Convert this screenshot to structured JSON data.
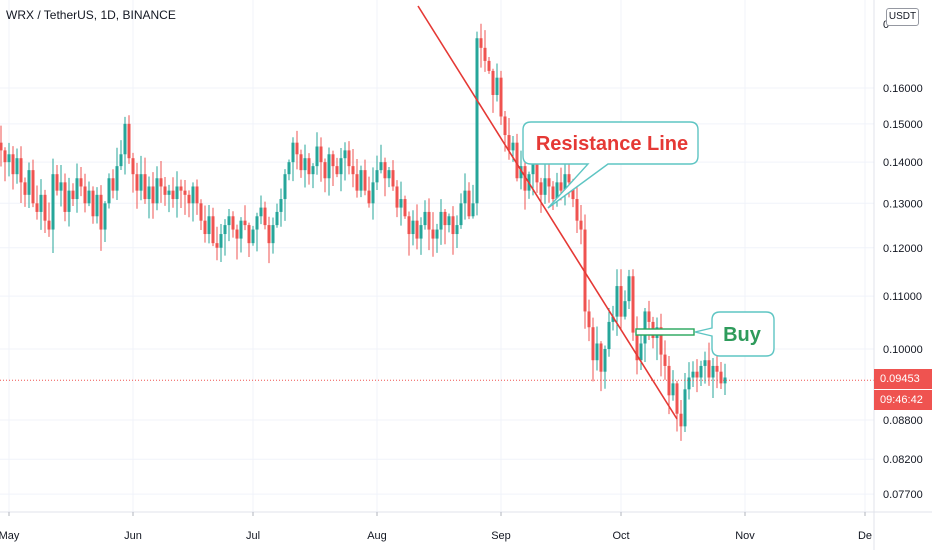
{
  "header": {
    "title": "WRX / TetherUS, 1D, BINANCE",
    "unit_badge": "USDT"
  },
  "price_tag": {
    "price": "0.09453",
    "countdown": "09:46:42"
  },
  "colors": {
    "up": "#26a69a",
    "down": "#ef5350",
    "annotation": "#e53935",
    "callout_border": "#5ec5c3"
  },
  "chart_data": {
    "type": "candlestick",
    "title": "WRX / TetherUS, 1D, BINANCE",
    "y_axis": {
      "scale": "log",
      "ticks": [
        "0.16000",
        "0.15000",
        "0.14000",
        "0.13000",
        "0.12000",
        "0.11000",
        "0.10000",
        "0.08800",
        "0.08200",
        "0.07700"
      ],
      "tick_values": [
        0.16,
        0.15,
        0.14,
        0.13,
        0.12,
        0.11,
        0.1,
        0.088,
        0.082,
        0.077
      ],
      "ylim": [
        0.073,
        0.185
      ]
    },
    "x_axis": {
      "ticks": [
        "May",
        "Jun",
        "Jul",
        "Aug",
        "Sep",
        "Oct",
        "Nov",
        "De"
      ],
      "tick_dates": [
        "2020-05-01",
        "2020-06-01",
        "2020-07-01",
        "2020-08-01",
        "2020-09-01",
        "2020-10-01",
        "2020-11-01",
        "2020-12-01"
      ],
      "range": [
        "2020-05-01",
        "2020-12-01"
      ]
    },
    "last_price": 0.09453,
    "candle_closes": {
      "start_date": "2020-04-28",
      "values": [
        0.145,
        0.143,
        0.14,
        0.142,
        0.137,
        0.141,
        0.135,
        0.132,
        0.138,
        0.13,
        0.128,
        0.132,
        0.126,
        0.124,
        0.137,
        0.133,
        0.135,
        0.128,
        0.133,
        0.131,
        0.136,
        0.134,
        0.13,
        0.133,
        0.127,
        0.132,
        0.124,
        0.13,
        0.136,
        0.133,
        0.139,
        0.142,
        0.15,
        0.141,
        0.137,
        0.133,
        0.137,
        0.131,
        0.134,
        0.13,
        0.136,
        0.134,
        0.132,
        0.133,
        0.131,
        0.134,
        0.133,
        0.132,
        0.13,
        0.134,
        0.13,
        0.126,
        0.123,
        0.127,
        0.121,
        0.12,
        0.123,
        0.125,
        0.127,
        0.124,
        0.122,
        0.126,
        0.125,
        0.121,
        0.124,
        0.127,
        0.129,
        0.125,
        0.121,
        0.125,
        0.128,
        0.131,
        0.137,
        0.14,
        0.145,
        0.142,
        0.138,
        0.141,
        0.137,
        0.139,
        0.144,
        0.14,
        0.136,
        0.142,
        0.139,
        0.137,
        0.141,
        0.143,
        0.139,
        0.137,
        0.133,
        0.138,
        0.133,
        0.13,
        0.135,
        0.138,
        0.14,
        0.136,
        0.138,
        0.134,
        0.129,
        0.131,
        0.127,
        0.123,
        0.126,
        0.122,
        0.125,
        0.128,
        0.124,
        0.122,
        0.124,
        0.128,
        0.125,
        0.127,
        0.123,
        0.125,
        0.13,
        0.133,
        0.127,
        0.13,
        0.175,
        0.172,
        0.168,
        0.165,
        0.158,
        0.163,
        0.152,
        0.147,
        0.143,
        0.145,
        0.136,
        0.139,
        0.133,
        0.137,
        0.142,
        0.135,
        0.132,
        0.136,
        0.134,
        0.131,
        0.135,
        0.133,
        0.137,
        0.135,
        0.131,
        0.126,
        0.124,
        0.107,
        0.104,
        0.098,
        0.101,
        0.096,
        0.1,
        0.105,
        0.106,
        0.112,
        0.106,
        0.109,
        0.114,
        0.103,
        0.098,
        0.101,
        0.107,
        0.105,
        0.102,
        0.104,
        0.099,
        0.097,
        0.092,
        0.094,
        0.089,
        0.087,
        0.093,
        0.095,
        0.096,
        0.095,
        0.097,
        0.098,
        0.095,
        0.097,
        0.096,
        0.094,
        0.095
      ]
    },
    "annotations": {
      "resistance_label": "Resistance Line",
      "buy_label": "Buy"
    }
  }
}
